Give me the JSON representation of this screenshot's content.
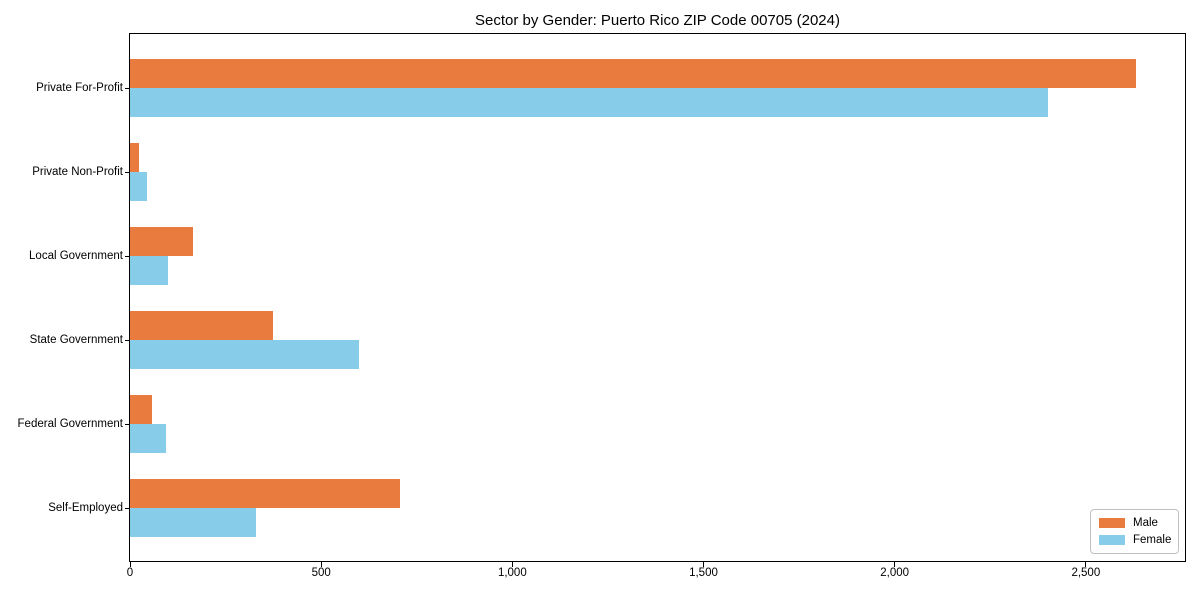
{
  "chart_data": {
    "type": "bar",
    "orientation": "horizontal",
    "title": "Sector by Gender: Puerto Rico ZIP Code 00705 (2024)",
    "xlabel": "",
    "ylabel": "",
    "grid": false,
    "categories": [
      "Private For-Profit",
      "Private Non-Profit",
      "Local Government",
      "State Government",
      "Federal Government",
      "Self-Employed"
    ],
    "series": [
      {
        "name": "Male",
        "color": "#E87B3D",
        "values": [
          2630,
          23,
          165,
          375,
          58,
          705
        ]
      },
      {
        "name": "Female",
        "color": "#87CCE8",
        "values": [
          2400,
          45,
          100,
          600,
          93,
          330
        ]
      }
    ],
    "xlim": [
      0,
      2762
    ],
    "xticks": [
      {
        "v": 0,
        "label": "0"
      },
      {
        "v": 500,
        "label": "500"
      },
      {
        "v": 1000,
        "label": "1,000"
      },
      {
        "v": 1500,
        "label": "1,500"
      },
      {
        "v": 2000,
        "label": "2,000"
      },
      {
        "v": 2500,
        "label": "2,500"
      }
    ],
    "legend": {
      "position": "lower right"
    }
  }
}
